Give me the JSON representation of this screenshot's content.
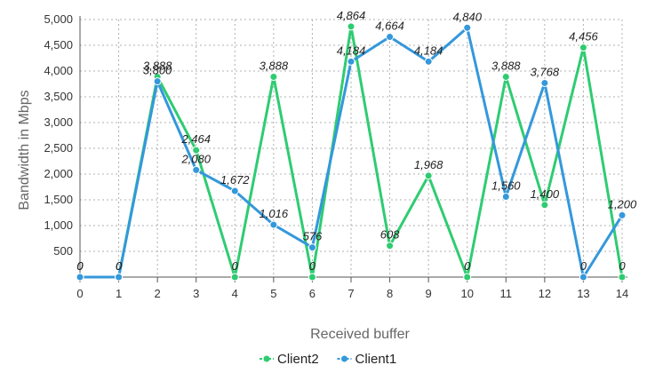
{
  "chart_data": {
    "type": "line",
    "xlabel": "Received buffer",
    "ylabel": "Bandwidth in Mbps",
    "x": [
      0,
      1,
      2,
      3,
      4,
      5,
      6,
      7,
      8,
      9,
      10,
      11,
      12,
      13,
      14
    ],
    "ylim": [
      0,
      5000
    ],
    "yticks": [
      500,
      1000,
      1500,
      2000,
      2500,
      3000,
      3500,
      4000,
      4500,
      5000
    ],
    "ytick_labels": [
      "500",
      "1,000",
      "1,500",
      "2,000",
      "2,500",
      "3,000",
      "3,500",
      "4,000",
      "4,500",
      "5,000"
    ],
    "grid": true,
    "legend_position": "bottom-center",
    "series": [
      {
        "name": "Client2",
        "color": "#2ecc71",
        "values": [
          0,
          0,
          3888,
          2464,
          0,
          3888,
          0,
          4864,
          608,
          1968,
          0,
          3888,
          1400,
          4456,
          0
        ],
        "labels": [
          "0",
          "0",
          "3,888",
          "2,464",
          "0",
          "3,888",
          "0",
          "4,864",
          "608",
          "1,968",
          "0",
          "3,888",
          "1,400",
          "4,456",
          "0"
        ]
      },
      {
        "name": "Client1",
        "color": "#3498db",
        "values": [
          0,
          0,
          3800,
          2080,
          1672,
          1016,
          576,
          4184,
          4664,
          4184,
          4840,
          1560,
          3768,
          0,
          1200
        ],
        "labels": [
          "0",
          "0",
          "3,800",
          "2,080",
          "1,672",
          "1,016",
          "576",
          "4,184",
          "4,664",
          "4,184",
          "4,840",
          "1,560",
          "3,768",
          "0",
          "1,200"
        ]
      }
    ]
  }
}
